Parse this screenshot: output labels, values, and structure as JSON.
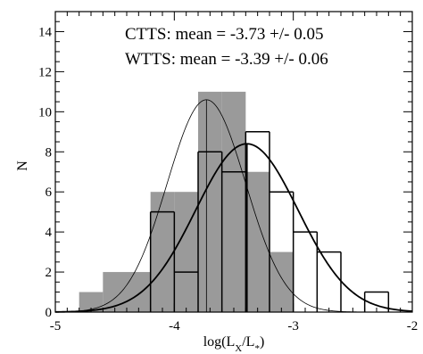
{
  "chart_data": {
    "type": "histogram",
    "title": "",
    "xlabel_main": "log(L",
    "xlabel_sub1": "X",
    "xlabel_mid": "/L",
    "xlabel_sub2": "*",
    "xlabel_end": ")",
    "ylabel": "N",
    "xlim": [
      -5,
      -2
    ],
    "ylim": [
      0,
      15
    ],
    "x_ticks": [
      -5,
      -4,
      -3,
      -2
    ],
    "x_tick_labels": [
      "-5",
      "-4",
      "-3",
      "-2"
    ],
    "y_ticks": [
      0,
      2,
      4,
      6,
      8,
      10,
      12,
      14
    ],
    "y_tick_labels": [
      "0",
      "2",
      "4",
      "6",
      "8",
      "10",
      "12",
      "14"
    ],
    "bin_edges": [
      -4.8,
      -4.6,
      -4.4,
      -4.2,
      -4.0,
      -3.8,
      -3.6,
      -3.4,
      -3.2,
      -3.0,
      -2.8,
      -2.6,
      -2.4,
      -2.2
    ],
    "series": [
      {
        "name": "CTTS",
        "style": "filled",
        "color": "#9a9a9a",
        "counts": [
          1,
          2,
          2,
          6,
          6,
          11,
          11,
          7,
          3,
          0,
          0,
          0,
          0
        ],
        "gaussian": {
          "mean": -3.73,
          "sigma": 0.33,
          "peak": 10.6
        }
      },
      {
        "name": "WTTS",
        "style": "outline",
        "color": "#000000",
        "counts": [
          0,
          0,
          0,
          5,
          2,
          8,
          7,
          9,
          6,
          4,
          3,
          0,
          1
        ],
        "gaussian": {
          "mean": -3.39,
          "sigma": 0.43,
          "peak": 8.4
        }
      }
    ],
    "annotations": [
      "CTTS:  mean = -3.73 +/- 0.05",
      "WTTS: mean = -3.39 +/- 0.06"
    ],
    "grid": false,
    "legend": "none"
  }
}
